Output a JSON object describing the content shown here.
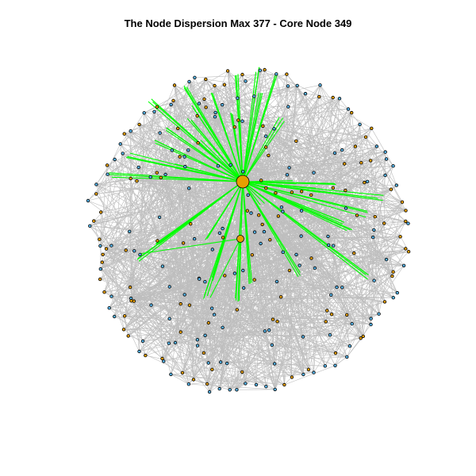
{
  "title": "The Node Dispersion Max 377 - Core Node 349",
  "colors": {
    "background": "#ffffff",
    "edge": "#bebebe",
    "highlight_edge": "#00ff00",
    "core_node": "#e69f00",
    "node_blue": "#56b4e9",
    "node_orange": "#e69f00",
    "node_border": "#000000"
  },
  "layout": "circular-force",
  "core_node": {
    "id": 349
  }
}
